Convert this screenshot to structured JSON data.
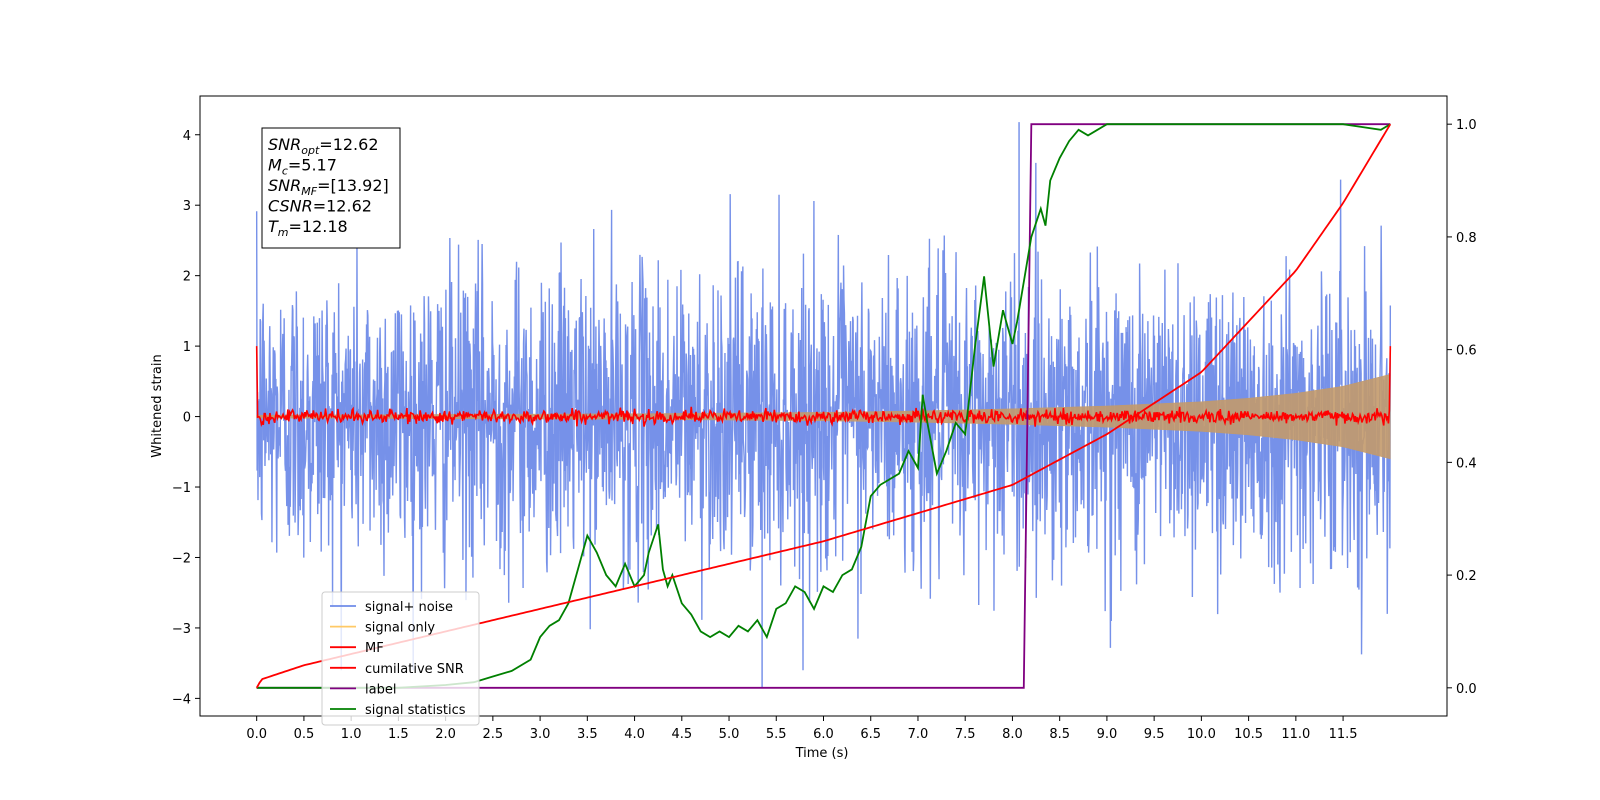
{
  "chart_data": {
    "type": "line",
    "xlabel": "Time (s)",
    "ylabel": "Whitened strain",
    "xlim": [
      -0.6,
      12.6
    ],
    "ylim": [
      -4.25,
      4.55
    ],
    "y2lim": [
      -0.05,
      1.05
    ],
    "xticks": [
      0.0,
      0.5,
      1.0,
      1.5,
      2.0,
      2.5,
      3.0,
      3.5,
      4.0,
      4.5,
      5.0,
      5.5,
      6.0,
      6.5,
      7.0,
      7.5,
      8.0,
      8.5,
      9.0,
      9.5,
      10.0,
      10.5,
      11.0,
      11.5
    ],
    "xtick_labels": [
      "0.0",
      "0.5",
      "1.0",
      "1.5",
      "2.0",
      "2.5",
      "3.0",
      "3.5",
      "4.0",
      "4.5",
      "5.0",
      "5.5",
      "6.0",
      "6.5",
      "7.0",
      "7.5",
      "8.0",
      "8.5",
      "9.0",
      "9.5",
      "10.0",
      "10.5",
      "11.0",
      "11.5"
    ],
    "yticks": [
      -4,
      -3,
      -2,
      -1,
      0,
      1,
      2,
      3,
      4
    ],
    "ytick_labels": [
      "−4",
      "−3",
      "−2",
      "−1",
      "0",
      "1",
      "2",
      "3",
      "4"
    ],
    "y2ticks": [
      0.0,
      0.2,
      0.4,
      0.6,
      0.8,
      1.0
    ],
    "y2tick_labels": [
      "0.0",
      "0.2",
      "0.4",
      "0.6",
      "0.8",
      "1.0"
    ],
    "grid": false,
    "legend_position": "lower-left",
    "annotation": {
      "lines": [
        {
          "main": "SNR",
          "sub": "opt",
          "value": "=12.62"
        },
        {
          "main": "M",
          "sub": "c",
          "value": "=5.17"
        },
        {
          "main": "SNR",
          "sub": "MF",
          "value": "=[13.92]"
        },
        {
          "main": "CSNR",
          "sub": "",
          "value": "=12.62"
        },
        {
          "main": "T",
          "sub": "m",
          "value": "=12.18"
        }
      ]
    },
    "legend": [
      {
        "label": "signal+ noise",
        "color": "#6f8be8"
      },
      {
        "label": "signal only",
        "color": "#ffc966"
      },
      {
        "label": "MF",
        "color": "#ff0000"
      },
      {
        "label": "cumilative SNR",
        "color": "#ff0000"
      },
      {
        "label": "label",
        "color": "#800080"
      },
      {
        "label": "signal statistics",
        "color": "#008000"
      }
    ],
    "series": [
      {
        "name": "signal+ noise",
        "axis": "left",
        "color": "#6f8be8",
        "x_range": [
          0.0,
          12.0
        ],
        "envelope_lower": -2.0,
        "envelope_upper": 2.3,
        "extreme_max": 4.18,
        "extreme_min": -3.85,
        "note_values": "dense noise trace"
      },
      {
        "name": "signal only",
        "axis": "left",
        "color": "#ffc966",
        "x": [
          0.0,
          2.0,
          4.0,
          6.0,
          7.0,
          8.0,
          9.0,
          10.0,
          10.5,
          11.0,
          11.5,
          12.0
        ],
        "amplitude": [
          0.02,
          0.03,
          0.04,
          0.06,
          0.08,
          0.11,
          0.15,
          0.21,
          0.26,
          0.33,
          0.43,
          0.6
        ]
      },
      {
        "name": "MF",
        "axis": "left",
        "color": "#ff0000",
        "x_range": [
          0.0,
          12.0
        ],
        "start_value": 1.0,
        "end_value": 1.0,
        "baseline": 0.0,
        "noise_amplitude": 0.08
      },
      {
        "name": "cumilative SNR",
        "axis": "right",
        "color": "#ff0000",
        "x": [
          0.0,
          0.05,
          0.5,
          1.0,
          2.0,
          3.0,
          4.0,
          5.0,
          6.0,
          7.0,
          8.0,
          9.0,
          10.0,
          11.0,
          11.5,
          12.0
        ],
        "values": [
          0.0,
          0.015,
          0.04,
          0.06,
          0.1,
          0.14,
          0.18,
          0.22,
          0.26,
          0.31,
          0.36,
          0.45,
          0.56,
          0.74,
          0.86,
          1.0
        ]
      },
      {
        "name": "label",
        "axis": "right",
        "color": "#800080",
        "x": [
          0.0,
          8.12,
          8.2,
          12.0
        ],
        "values": [
          0.0,
          0.0,
          1.0,
          1.0
        ]
      },
      {
        "name": "signal statistics",
        "axis": "right",
        "color": "#008000",
        "x": [
          0.0,
          0.5,
          1.0,
          1.5,
          2.0,
          2.3,
          2.5,
          2.7,
          2.9,
          3.0,
          3.1,
          3.2,
          3.3,
          3.4,
          3.5,
          3.6,
          3.7,
          3.8,
          3.9,
          4.0,
          4.1,
          4.15,
          4.25,
          4.3,
          4.35,
          4.4,
          4.5,
          4.6,
          4.7,
          4.8,
          4.9,
          5.0,
          5.1,
          5.2,
          5.3,
          5.4,
          5.5,
          5.6,
          5.7,
          5.8,
          5.9,
          6.0,
          6.1,
          6.2,
          6.3,
          6.4,
          6.5,
          6.6,
          6.7,
          6.8,
          6.9,
          7.0,
          7.05,
          7.1,
          7.2,
          7.3,
          7.4,
          7.5,
          7.6,
          7.7,
          7.8,
          7.9,
          8.0,
          8.05,
          8.2,
          8.3,
          8.35,
          8.4,
          8.45,
          8.5,
          8.6,
          8.7,
          8.8,
          8.9,
          9.0,
          9.2,
          9.5,
          9.8,
          10.0,
          10.5,
          11.0,
          11.5,
          11.9,
          12.0
        ],
        "values": [
          0.0,
          0.0,
          0.0,
          0.0,
          0.005,
          0.01,
          0.02,
          0.03,
          0.05,
          0.09,
          0.11,
          0.12,
          0.15,
          0.21,
          0.27,
          0.24,
          0.2,
          0.18,
          0.22,
          0.18,
          0.2,
          0.24,
          0.29,
          0.21,
          0.18,
          0.2,
          0.15,
          0.13,
          0.1,
          0.09,
          0.1,
          0.09,
          0.11,
          0.1,
          0.12,
          0.09,
          0.14,
          0.15,
          0.18,
          0.17,
          0.14,
          0.18,
          0.17,
          0.2,
          0.21,
          0.25,
          0.34,
          0.36,
          0.37,
          0.38,
          0.42,
          0.39,
          0.52,
          0.47,
          0.38,
          0.42,
          0.47,
          0.45,
          0.6,
          0.73,
          0.57,
          0.67,
          0.61,
          0.65,
          0.8,
          0.85,
          0.82,
          0.9,
          0.92,
          0.94,
          0.97,
          0.99,
          0.98,
          0.99,
          1.0,
          1.0,
          1.0,
          1.0,
          1.0,
          1.0,
          1.0,
          1.0,
          0.99,
          1.0
        ]
      }
    ]
  }
}
